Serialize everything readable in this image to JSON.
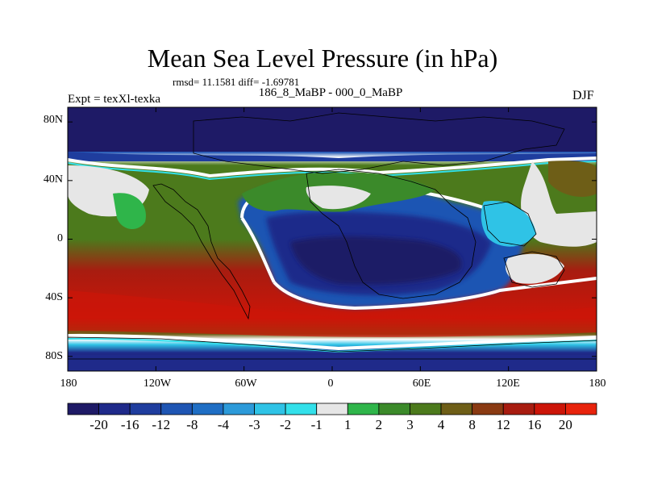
{
  "title": "Mean Sea Level Pressure (in hPa)",
  "stats_text": "rmsd= 11.1581 diff= -1.69781",
  "left_label": "Expt = texXl-texka",
  "center_label": "186_8_MaBP - 000_0_MaBP",
  "right_label": "DJF",
  "map": {
    "projection": "cylindrical equidistant",
    "lon_range": [
      -180,
      180
    ],
    "lat_range": [
      -90,
      90
    ],
    "lon_ticks": [
      "180",
      "120W",
      "60W",
      "0",
      "60E",
      "120E",
      "180"
    ],
    "lat_ticks": [
      "80N",
      "40N",
      "0",
      "40S",
      "80S"
    ]
  },
  "colorbar": {
    "labels": [
      "-20",
      "-16",
      "-12",
      "-8",
      "-4",
      "-3",
      "-2",
      "-1",
      "1",
      "2",
      "3",
      "4",
      "8",
      "12",
      "16",
      "20"
    ],
    "colors": [
      "#1e1a66",
      "#1f2a8a",
      "#1f3d9e",
      "#1e55b3",
      "#1f6ec4",
      "#2c9ad9",
      "#2fc3e6",
      "#33e0ea",
      "#e6e6e6",
      "#2fb54a",
      "#3b8a2a",
      "#4c7a1c",
      "#6e5e17",
      "#8a3a12",
      "#a81c10",
      "#cc1508",
      "#e8230c"
    ]
  }
}
